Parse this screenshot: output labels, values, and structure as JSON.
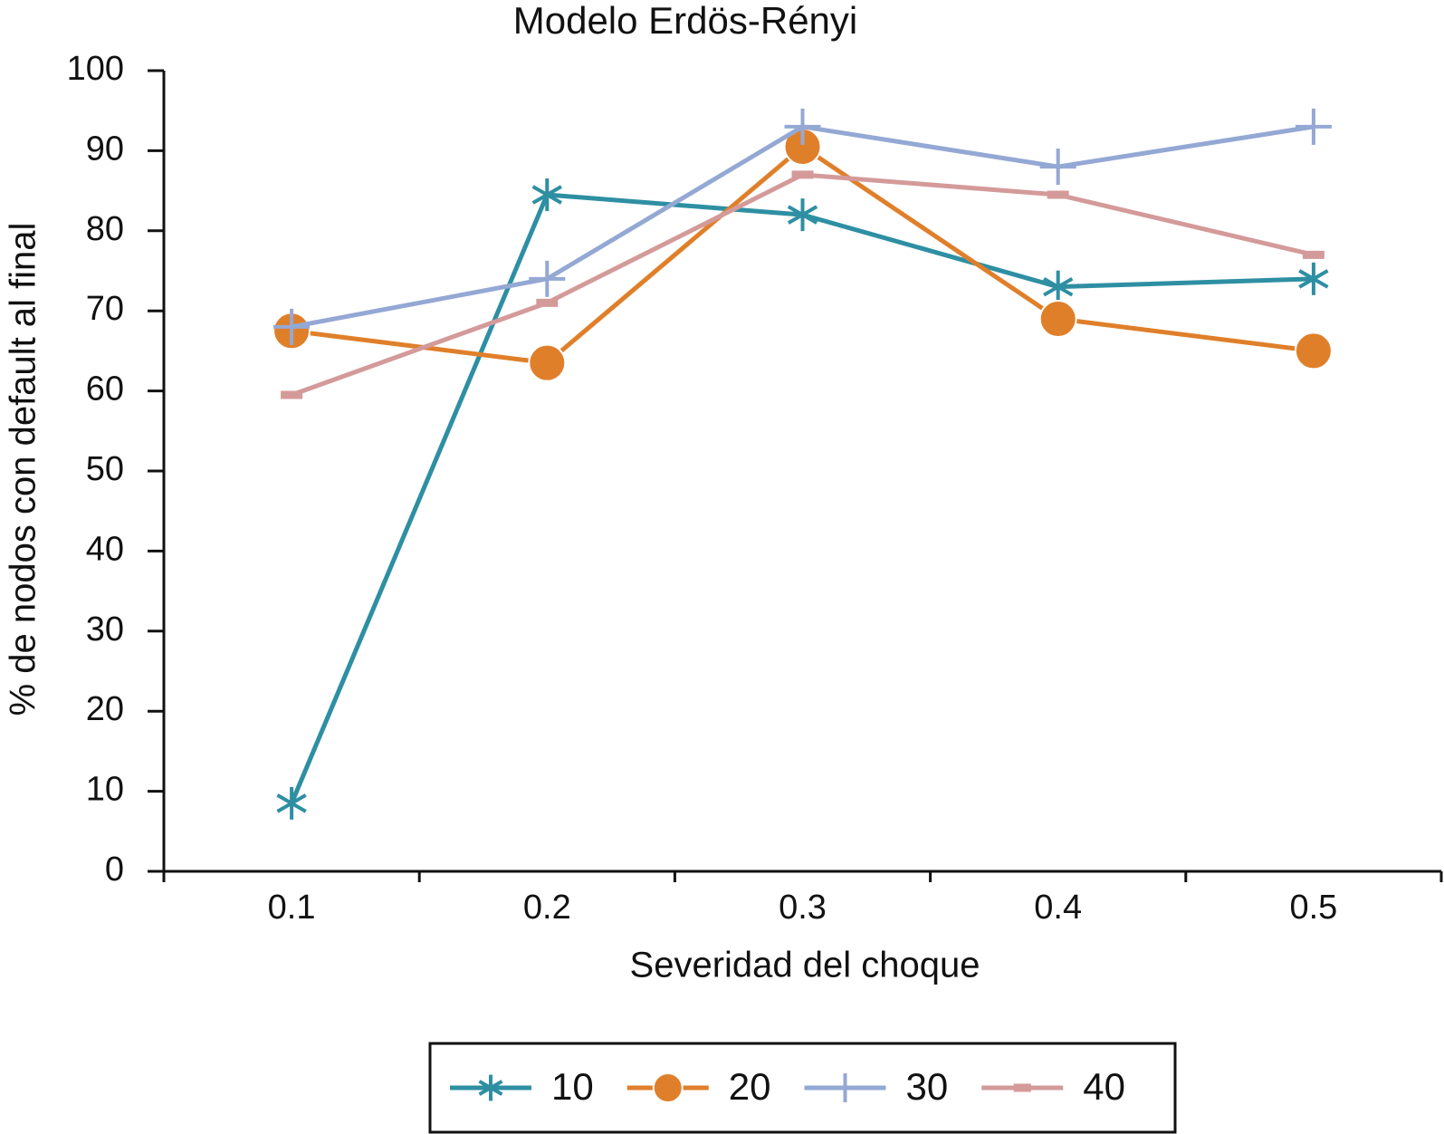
{
  "chart_data": {
    "type": "line",
    "title": "Modelo  Erdös-Rényi",
    "x_label": "Severidad del choque",
    "y_label": "% de nodos con default al final",
    "categories": [
      "0.1",
      "0.2",
      "0.3",
      "0.4",
      "0.5"
    ],
    "series": [
      {
        "name": "10",
        "color": "#2e8fa3",
        "marker": "star",
        "values": [
          8.5,
          84.5,
          82,
          73,
          74
        ]
      },
      {
        "name": "20",
        "color": "#e07f2a",
        "marker": "circle",
        "values": [
          67.5,
          63.5,
          90.5,
          69,
          65
        ]
      },
      {
        "name": "30",
        "color": "#94a8d4",
        "marker": "plus",
        "values": [
          68,
          74,
          93,
          88,
          93
        ]
      },
      {
        "name": "40",
        "color": "#d49a9a",
        "marker": "dash",
        "values": [
          59.5,
          71,
          87,
          84.5,
          77
        ]
      }
    ],
    "ylim": [
      0,
      100
    ],
    "yticks": [
      0,
      10,
      20,
      30,
      40,
      50,
      60,
      70,
      80,
      90,
      100
    ],
    "grid": false,
    "legend": "bottom"
  }
}
